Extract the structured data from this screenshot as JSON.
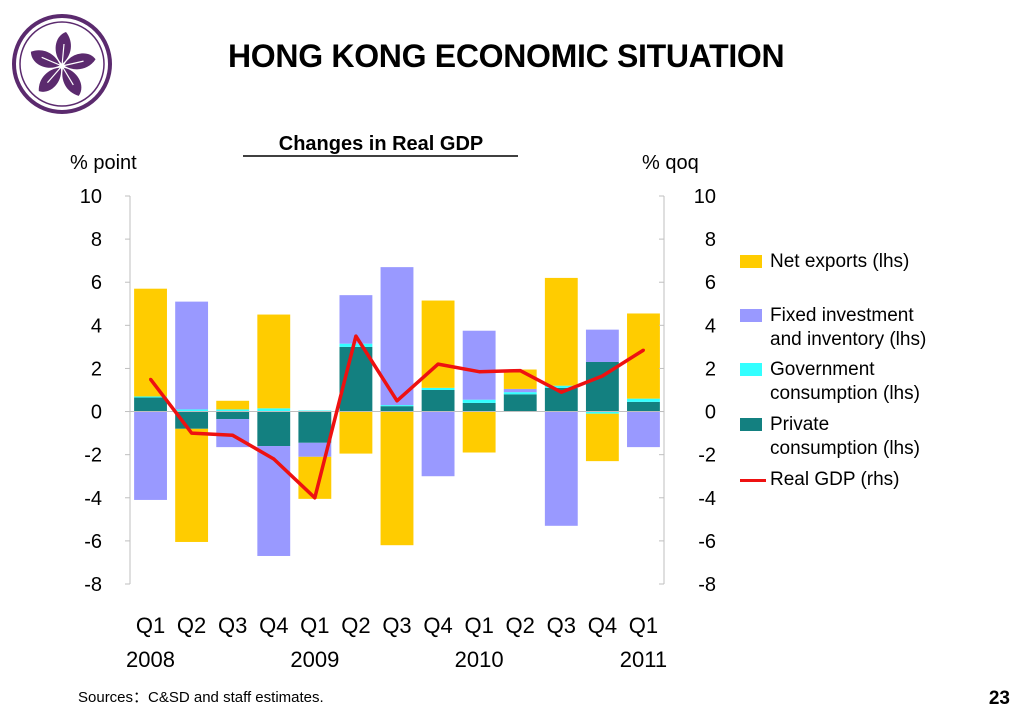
{
  "slide": {
    "title": "HONG KONG ECONOMIC SITUATION",
    "source": "Sources：C&SD and staff estimates.",
    "page_number": "23",
    "logo_icon": "bauhinia-logo-icon"
  },
  "chart_data": {
    "type": "bar",
    "stacked": true,
    "title": "Changes in Real GDP",
    "ylabel_left": "% point",
    "ylabel_right": "% qoq",
    "ylim": [
      -8,
      10
    ],
    "ylim_right": [
      -8,
      10
    ],
    "yticks": [
      "10",
      "8",
      "6",
      "4",
      "2",
      "0",
      "-2",
      "-4",
      "-6",
      "-8"
    ],
    "categories": [
      "Q1",
      "Q2",
      "Q3",
      "Q4",
      "Q1",
      "Q2",
      "Q3",
      "Q4",
      "Q1",
      "Q2",
      "Q3",
      "Q4",
      "Q1"
    ],
    "years": [
      {
        "label": "2008",
        "start": 0,
        "end": 3
      },
      {
        "label": "2009",
        "start": 4,
        "end": 7
      },
      {
        "label": "2010",
        "start": 8,
        "end": 11
      },
      {
        "label": "2011",
        "start": 12,
        "end": 12
      }
    ],
    "series": [
      {
        "name": "Private consumption (lhs)",
        "color": "#138080",
        "values": [
          0.65,
          -0.8,
          -0.35,
          -1.6,
          -1.45,
          3.0,
          0.25,
          1.0,
          0.4,
          0.8,
          1.1,
          2.3,
          0.45
        ]
      },
      {
        "name": "Government consumption (lhs)",
        "color": "#33ffff",
        "values": [
          0.05,
          0.1,
          0.1,
          0.15,
          0.05,
          0.15,
          0.05,
          0.1,
          0.15,
          0.1,
          0.1,
          -0.1,
          0.15
        ]
      },
      {
        "name": "Fixed investment and inventory (lhs)",
        "color": "#9999ff",
        "values": [
          -4.1,
          5.0,
          -1.3,
          -5.1,
          -0.65,
          2.25,
          6.4,
          -3.0,
          3.2,
          0.15,
          -5.3,
          1.5,
          -1.65
        ]
      },
      {
        "name": "Net exports (lhs)",
        "color": "#ffcc00",
        "values": [
          5.0,
          -5.25,
          0.4,
          4.35,
          -1.95,
          -1.95,
          -6.2,
          4.05,
          -1.9,
          0.9,
          5.0,
          -2.2,
          3.95
        ]
      },
      {
        "name": "Real GDP (rhs)",
        "color": "#ee1111",
        "kind": "line",
        "values": [
          1.5,
          -1.0,
          -1.1,
          -2.2,
          -4.0,
          3.5,
          0.5,
          2.2,
          1.85,
          1.9,
          0.9,
          1.65,
          2.85
        ]
      }
    ],
    "legend_position": "right",
    "grid": false
  }
}
